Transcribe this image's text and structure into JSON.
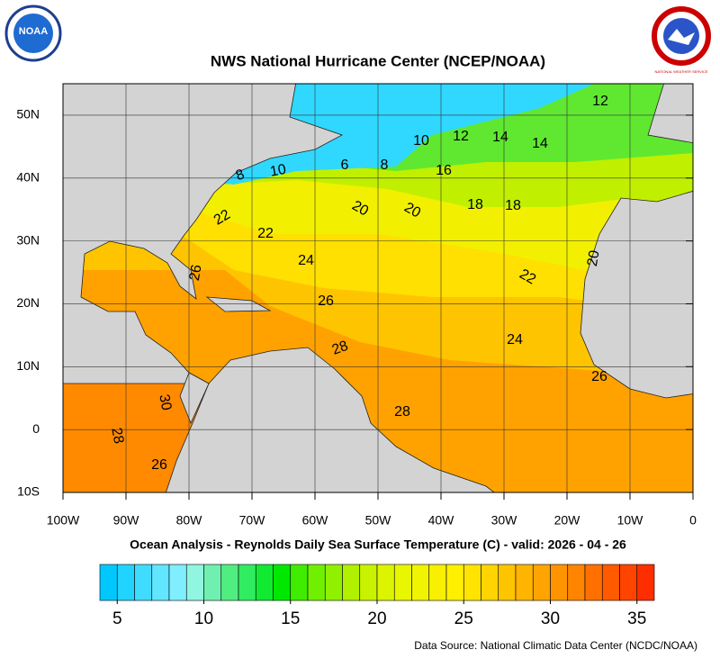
{
  "header": {
    "title": "NWS National Hurricane Center (NCEP/NOAA)",
    "logo_left": "NOAA",
    "logo_right": "NATIONAL WEATHER SERVICE"
  },
  "map": {
    "xlim": [
      -100,
      0
    ],
    "ylim": [
      -10,
      55
    ],
    "xticks": [
      {
        "value": -100,
        "label": "100W"
      },
      {
        "value": -90,
        "label": "90W"
      },
      {
        "value": -80,
        "label": "80W"
      },
      {
        "value": -70,
        "label": "70W"
      },
      {
        "value": -60,
        "label": "60W"
      },
      {
        "value": -50,
        "label": "50W"
      },
      {
        "value": -40,
        "label": "40W"
      },
      {
        "value": -30,
        "label": "30W"
      },
      {
        "value": -20,
        "label": "20W"
      },
      {
        "value": -10,
        "label": "10W"
      },
      0
    ],
    "yticks": [
      {
        "value": -10,
        "label": "10S"
      },
      0,
      {
        "value": 10,
        "label": "10N"
      },
      {
        "value": 20,
        "label": "20N"
      },
      {
        "value": 30,
        "label": "30N"
      },
      {
        "value": 40,
        "label": "40N"
      },
      {
        "value": 50,
        "label": "50N"
      }
    ],
    "contour_labels": [
      12,
      10,
      12,
      14,
      14,
      8,
      10,
      6,
      8,
      16,
      22,
      20,
      20,
      18,
      18,
      22,
      24,
      26,
      20,
      22,
      26,
      24,
      28,
      26,
      30,
      28,
      28,
      26
    ]
  },
  "caption": "Ocean Analysis - Reynolds Daily Sea Surface Temperature (C) - valid: 2026 - 04 - 26",
  "colorbar": {
    "range": [
      4,
      36
    ],
    "ticks": [
      5,
      10,
      15,
      20,
      25,
      30,
      35
    ],
    "colors": [
      "#00c8ff",
      "#20d4ff",
      "#40dcff",
      "#60e6ff",
      "#80eeff",
      "#90f6e0",
      "#70f0b0",
      "#50ee80",
      "#30ec60",
      "#10ea30",
      "#00e800",
      "#40ec00",
      "#70f000",
      "#90f000",
      "#b0f000",
      "#c8f200",
      "#dcf400",
      "#e8f600",
      "#f0f400",
      "#f8f000",
      "#fff000",
      "#ffe400",
      "#ffd400",
      "#ffc400",
      "#ffb400",
      "#ffa400",
      "#ff9400",
      "#ff8400",
      "#ff7000",
      "#ff5a00",
      "#ff4400",
      "#ff2e00"
    ]
  },
  "source": "Data Source: National Climatic Data Center (NCDC/NOAA)"
}
